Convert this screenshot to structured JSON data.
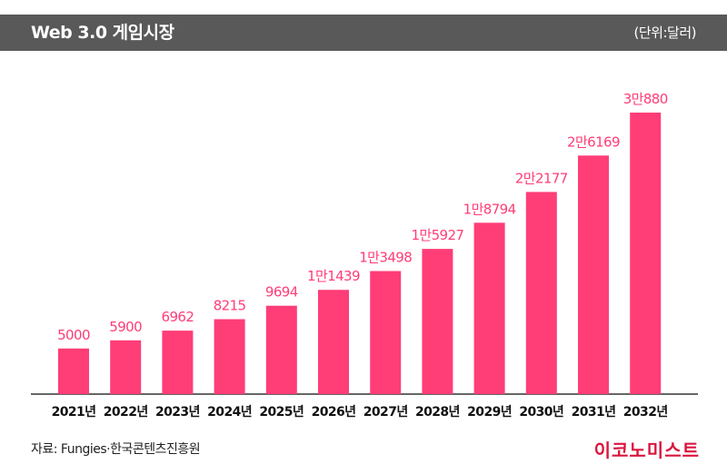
{
  "header": {
    "title": "Web 3.0 게임시장",
    "unit": "(단위:달러)"
  },
  "footer": {
    "source": "자료: Fungies·한국콘텐츠진흥원",
    "brand": "이코노미스트"
  },
  "colors": {
    "bar": "#ff3d77",
    "label": "#ff3d77",
    "title_bg": "#595959",
    "brand": "#d9163f"
  },
  "chart_data": {
    "type": "bar",
    "title": "Web 3.0 게임시장",
    "xlabel": "",
    "ylabel": "",
    "unit": "(단위:달러)",
    "categories": [
      "2021년",
      "2022년",
      "2023년",
      "2024년",
      "2025년",
      "2026년",
      "2027년",
      "2028년",
      "2029년",
      "2030년",
      "2031년",
      "2032년"
    ],
    "values": [
      5000,
      5900,
      6962,
      8215,
      9694,
      11439,
      13498,
      15927,
      18794,
      22177,
      26169,
      30880
    ],
    "value_labels": [
      "5000",
      "5900",
      "6962",
      "8215",
      "9694",
      "1만1439",
      "1만3498",
      "1만5927",
      "1만8794",
      "2만2177",
      "2만6169",
      "3만880"
    ],
    "ylim": [
      0,
      30880
    ],
    "grid": false,
    "legend": "none"
  }
}
